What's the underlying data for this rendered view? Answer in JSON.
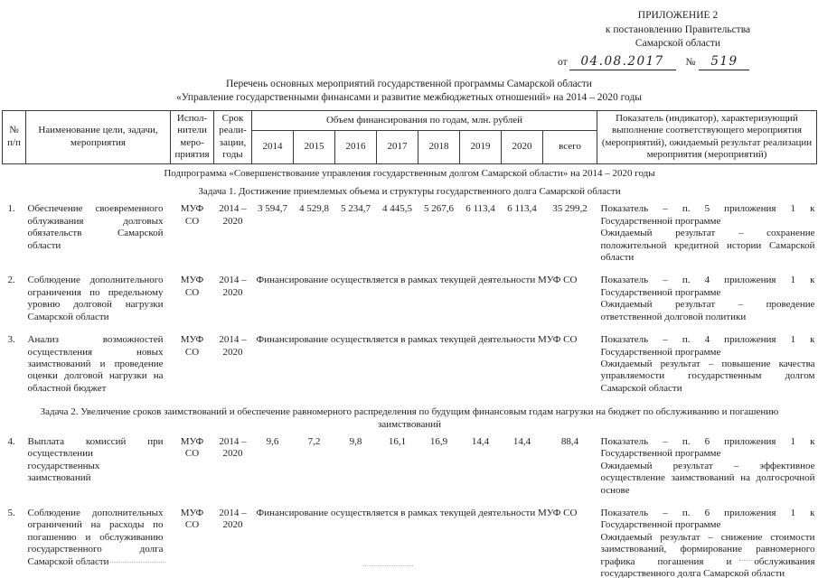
{
  "appendix": {
    "line1": "ПРИЛОЖЕНИЕ 2",
    "line2": "к постановлению Правительства",
    "line3": "Самарской области",
    "from_label": "от",
    "date": "04.08.2017",
    "number_label": "№",
    "number": "519"
  },
  "title": {
    "line1": "Перечень основных мероприятий государственной программы Самарской области",
    "line2": "«Управление государственными финансами и развитие межбюджетных отношений» на 2014 – 2020 годы"
  },
  "table": {
    "header": {
      "num": "№ п/п",
      "name": "Наименование цели, задачи, мероприятия",
      "executors": "Испол-нители меро-приятия",
      "term": "Срок реали-зации, годы",
      "financing": "Объем финансирования по годам, млн. рублей",
      "years": [
        "2014",
        "2015",
        "2016",
        "2017",
        "2018",
        "2019",
        "2020",
        "всего"
      ],
      "indicator": "Показатель (индикатор), характеризующий выполнение соответствующего мероприятия (мероприятий), ожидаемый результат реализации мероприятия (мероприятий)"
    },
    "sections": {
      "subprogram": "Подпрограмма «Совершенствование управления государственным долгом Самарской области» на 2014 – 2020 годы",
      "task1": "Задача 1. Достижение приемлемых объема и структуры государственного долга Самарской области",
      "task2": "Задача 2. Увеличение сроков заимствований и обеспечение равномерного распределения по будущим финансовым годам нагрузки на бюджет по обслуживанию и погашению заимствований"
    },
    "rows": [
      {
        "num": "1.",
        "name": "Обеспечение своевременного облуживания долговых обязательств Самарской области",
        "executor": "МУФ СО",
        "term": "2014 – 2020",
        "values": [
          "3 594,7",
          "4 529,8",
          "5 234,7",
          "4 445,5",
          "5 267,6",
          "6 113,4",
          "6 113,4",
          "35 299,2"
        ],
        "indicator": "Показатель – п. 5 приложения 1 к Государственной программе",
        "result": "Ожидаемый результат – сохранение положительной кредитной истории Самарской области"
      },
      {
        "num": "2.",
        "name": "Соблюдение дополнительного ограничения по предельному уровню долговой нагрузки Самарской области",
        "executor": "МУФ СО",
        "term": "2014 – 2020",
        "financing": "Финансирование осуществляется в рамках текущей деятельности МУФ СО",
        "indicator": "Показатель – п. 4 приложения 1 к Государственной программе",
        "result": "Ожидаемый результат – проведение ответственной долговой политики"
      },
      {
        "num": "3.",
        "name": "Анализ возможностей осуществления новых заимствований и проведение оценки долговой нагрузки на областной бюджет",
        "executor": "МУФ СО",
        "term": "2014 – 2020",
        "financing": "Финансирование осуществляется в рамках текущей деятельности МУФ СО",
        "indicator": "Показатель – п. 4 приложения 1 к Государственной программе",
        "result": "Ожидаемый результат – повышение качества управляемости государственным долгом Самарской области"
      },
      {
        "num": "4.",
        "name": "Выплата комиссий при осуществлении государственных заимствований",
        "executor": "МУФ СО",
        "term": "2014 – 2020",
        "values": [
          "9,6",
          "7,2",
          "9,8",
          "16,1",
          "16,9",
          "14,4",
          "14,4",
          "88,4"
        ],
        "indicator": "Показатель – п. 6 приложения 1 к Государственной программе",
        "result": "Ожидаемый результат – эффективное осуществление заимствований на долгосрочной основе"
      },
      {
        "num": "5.",
        "name": "Соблюдение дополнительных ограничений на расходы по погашению и обслуживанию государственного долга Самарской области",
        "executor": "МУФ СО",
        "term": "2014 – 2020",
        "financing": "Финансирование осуществляется в рамках текущей деятельности МУФ СО",
        "indicator": "Показатель – п. 6 приложения 1 к Государственной программе",
        "result": "Ожидаемый результат – снижение стоимости заимствований, формирование равномерного графика погашения и обслуживания государственного долга Самарской области"
      }
    ]
  }
}
